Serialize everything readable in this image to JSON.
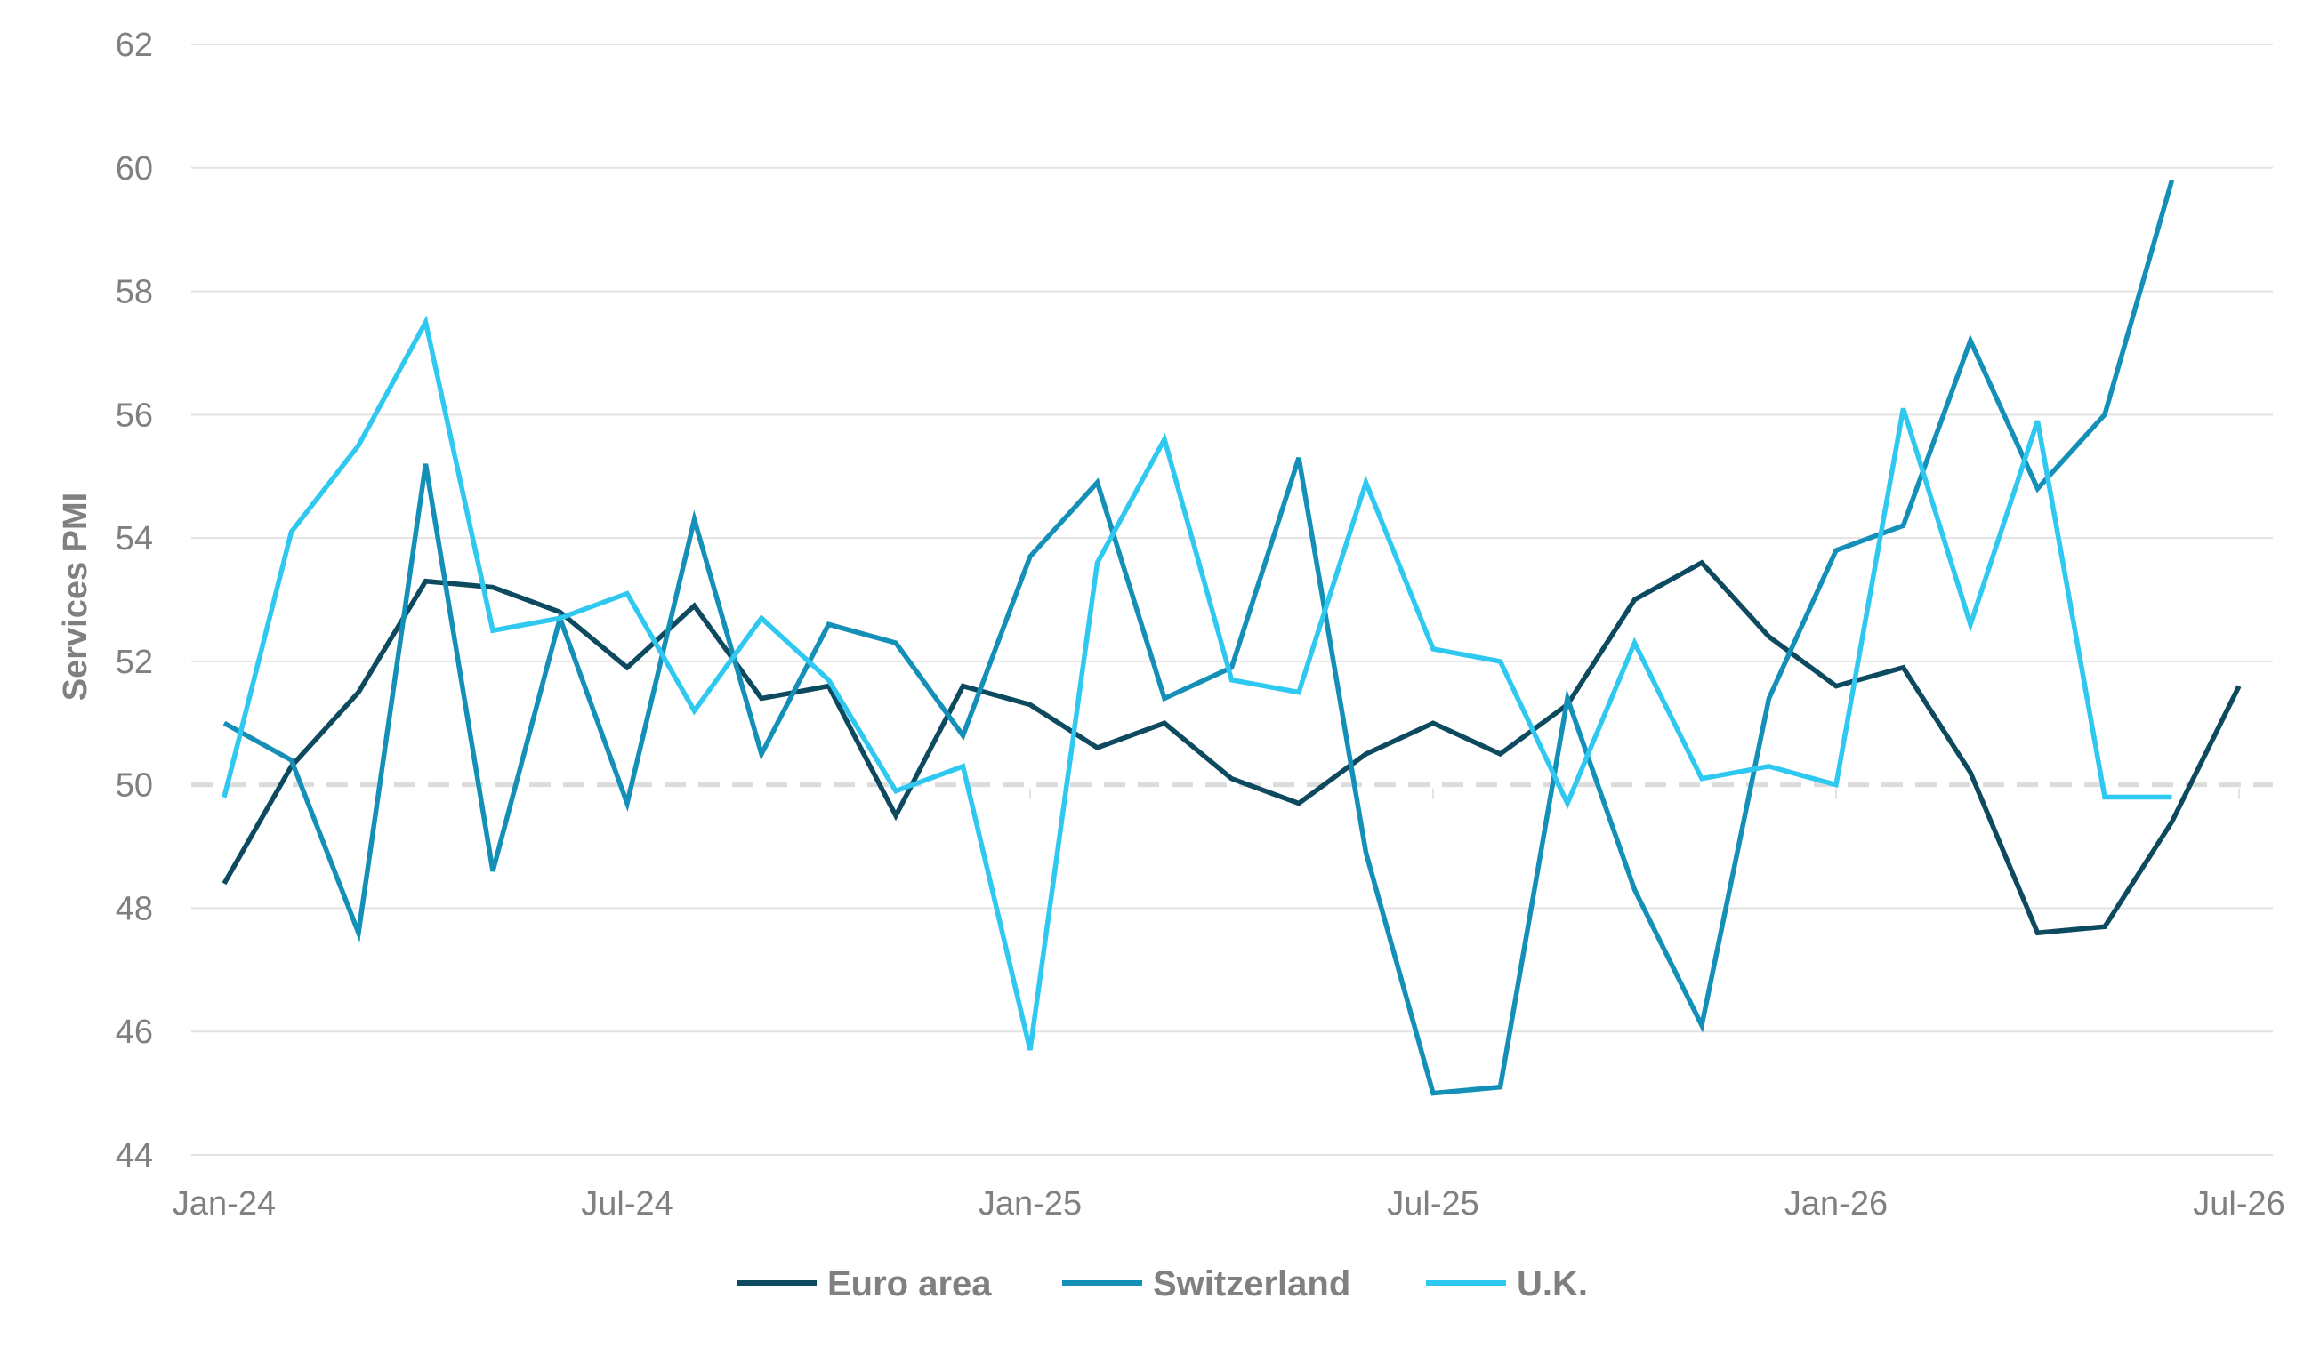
{
  "chart_data": {
    "type": "line",
    "xlabel": "",
    "ylabel": "Services PMI",
    "ylim": [
      44,
      62
    ],
    "yticks": [
      44,
      46,
      48,
      50,
      52,
      54,
      56,
      58,
      60,
      62
    ],
    "xticks": [
      "Jan-24",
      "Jul-24",
      "Jan-25",
      "Jul-25",
      "Jan-26",
      "Jul-26"
    ],
    "grid": true,
    "reference_line": 50,
    "legend": "bottom",
    "x": [
      "2024-01",
      "2024-02",
      "2024-03",
      "2024-04",
      "2024-05",
      "2024-06",
      "2024-07",
      "2024-08",
      "2024-09",
      "2024-10",
      "2024-11",
      "2024-12",
      "2025-01",
      "2025-02",
      "2025-03",
      "2025-04",
      "2025-05",
      "2025-06",
      "2025-07",
      "2025-08",
      "2025-09",
      "2025-10",
      "2025-11",
      "2025-12",
      "2026-01",
      "2026-02",
      "2026-03",
      "2026-04",
      "2026-05",
      "2026-06",
      "2026-07"
    ],
    "series": [
      {
        "name": "Euro area",
        "color": "#0d4a5f",
        "values": [
          48.4,
          50.3,
          51.5,
          53.3,
          53.2,
          52.8,
          51.9,
          52.9,
          51.4,
          51.6,
          49.5,
          51.6,
          51.3,
          50.6,
          51.0,
          50.1,
          49.7,
          50.5,
          51.0,
          50.5,
          51.3,
          53.0,
          53.6,
          52.4,
          51.6,
          51.9,
          50.2,
          47.6,
          47.7,
          49.4,
          51.6
        ]
      },
      {
        "name": "Switzerland",
        "color": "#1490b8",
        "values": [
          51.0,
          50.4,
          47.6,
          55.2,
          48.6,
          52.7,
          49.7,
          54.3,
          50.5,
          52.6,
          52.3,
          50.8,
          53.7,
          54.9,
          51.4,
          51.9,
          55.3,
          48.9,
          45.0,
          45.1,
          51.4,
          48.3,
          46.1,
          51.4,
          53.8,
          54.2,
          57.2,
          54.8,
          56.0,
          59.8,
          null
        ]
      },
      {
        "name": "U.K.",
        "color": "#2ec8f0",
        "values": [
          49.8,
          54.1,
          55.5,
          57.5,
          52.5,
          52.7,
          53.1,
          51.2,
          52.7,
          51.7,
          49.9,
          50.3,
          45.7,
          53.6,
          55.6,
          51.7,
          51.5,
          54.9,
          52.2,
          52.0,
          49.7,
          52.3,
          50.1,
          50.3,
          50.0,
          56.1,
          52.6,
          55.9,
          49.8,
          49.8,
          null
        ]
      }
    ]
  }
}
